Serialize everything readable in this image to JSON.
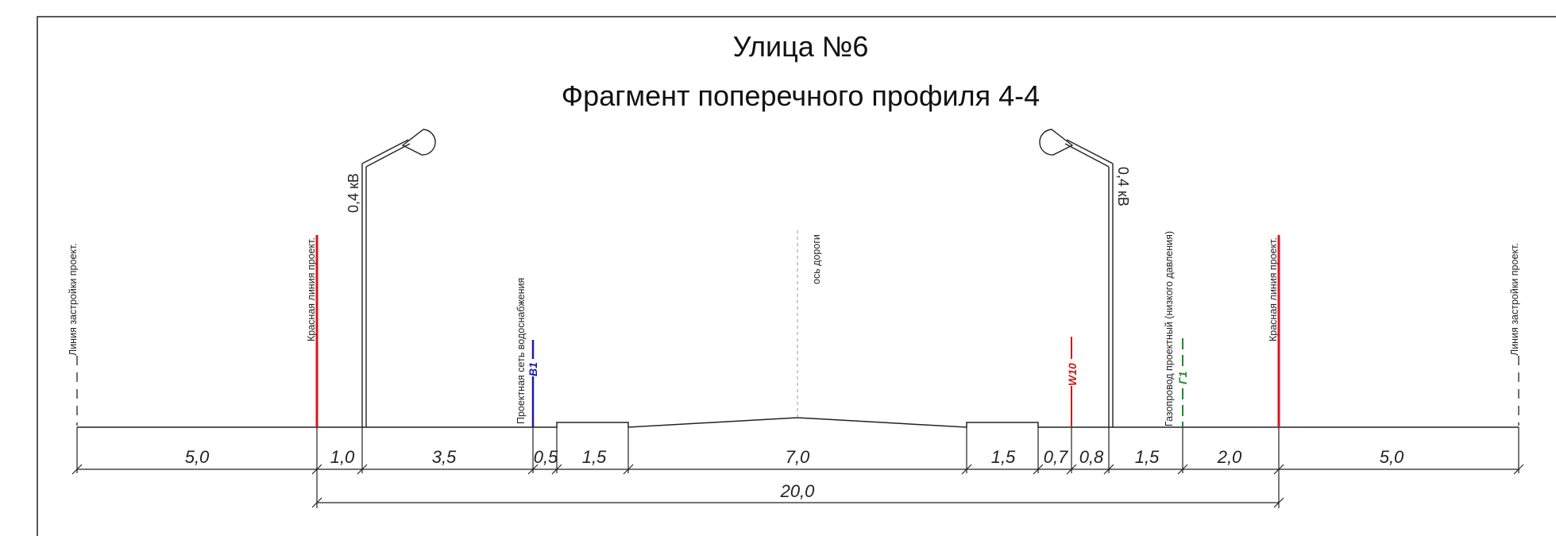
{
  "title": "Улица №6",
  "subtitle": "Фрагмент поперечного профиля 4-4",
  "labels": {
    "building_line_left": "Линия застройки проект.",
    "building_line_right": "Линия застройки проект.",
    "red_line_left": "Красная линия проект.",
    "red_line_right": "Красная линия проект.",
    "lamp_left_voltage": "0,4 кВ",
    "lamp_right_voltage": "0,4 кВ",
    "water_network": "Проектная сеть водоснабжения",
    "water_code": "В1",
    "road_axis": "ось дороги",
    "cable_code": "W10",
    "gas_pipeline": "Газопровод проектный (низкого давления)",
    "gas_code": "Г1"
  },
  "dimensions": [
    "5,0",
    "1,0",
    "3,5",
    "0,5",
    "1,5",
    "7,0",
    "1,5",
    "0,7",
    "0,8",
    "1,5",
    "2,0",
    "5,0"
  ],
  "total_dimension": "20,0",
  "colors": {
    "red_line": "#d8141c",
    "water": "#1a1aa6",
    "cable": "#cc1a1a",
    "gas": "#1f8a2a",
    "ink": "#222222"
  }
}
